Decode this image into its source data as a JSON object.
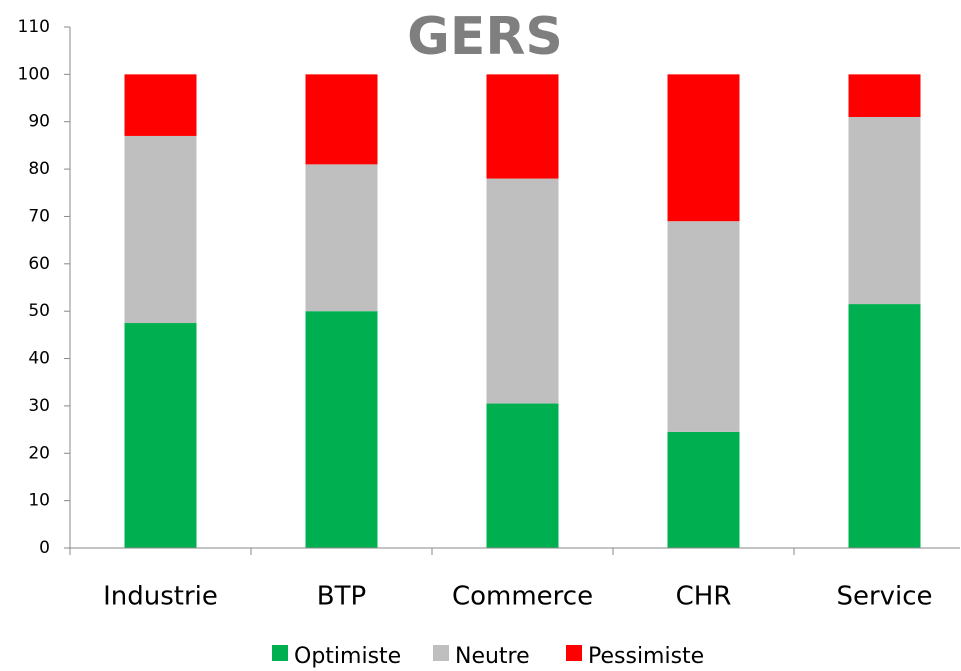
{
  "chart_data": {
    "type": "stacked_bar",
    "title": "GERS",
    "categories": [
      "Industrie",
      "BTP",
      "Commerce",
      "CHR",
      "Service"
    ],
    "series": [
      {
        "name": "Optimiste",
        "color": "#00b050",
        "values": [
          47.5,
          50,
          30.5,
          24.5,
          51.5
        ]
      },
      {
        "name": "Neutre",
        "color": "#bfbfbf",
        "values": [
          39.5,
          31,
          47.5,
          44.5,
          39.5
        ]
      },
      {
        "name": "Pessimiste",
        "color": "#ff0000",
        "values": [
          13,
          19,
          22,
          31,
          9
        ]
      }
    ],
    "ylim": [
      0,
      110
    ],
    "yticks": [
      0,
      10,
      20,
      30,
      40,
      50,
      60,
      70,
      80,
      90,
      100,
      110
    ],
    "grid": false,
    "legend": "bottom"
  }
}
